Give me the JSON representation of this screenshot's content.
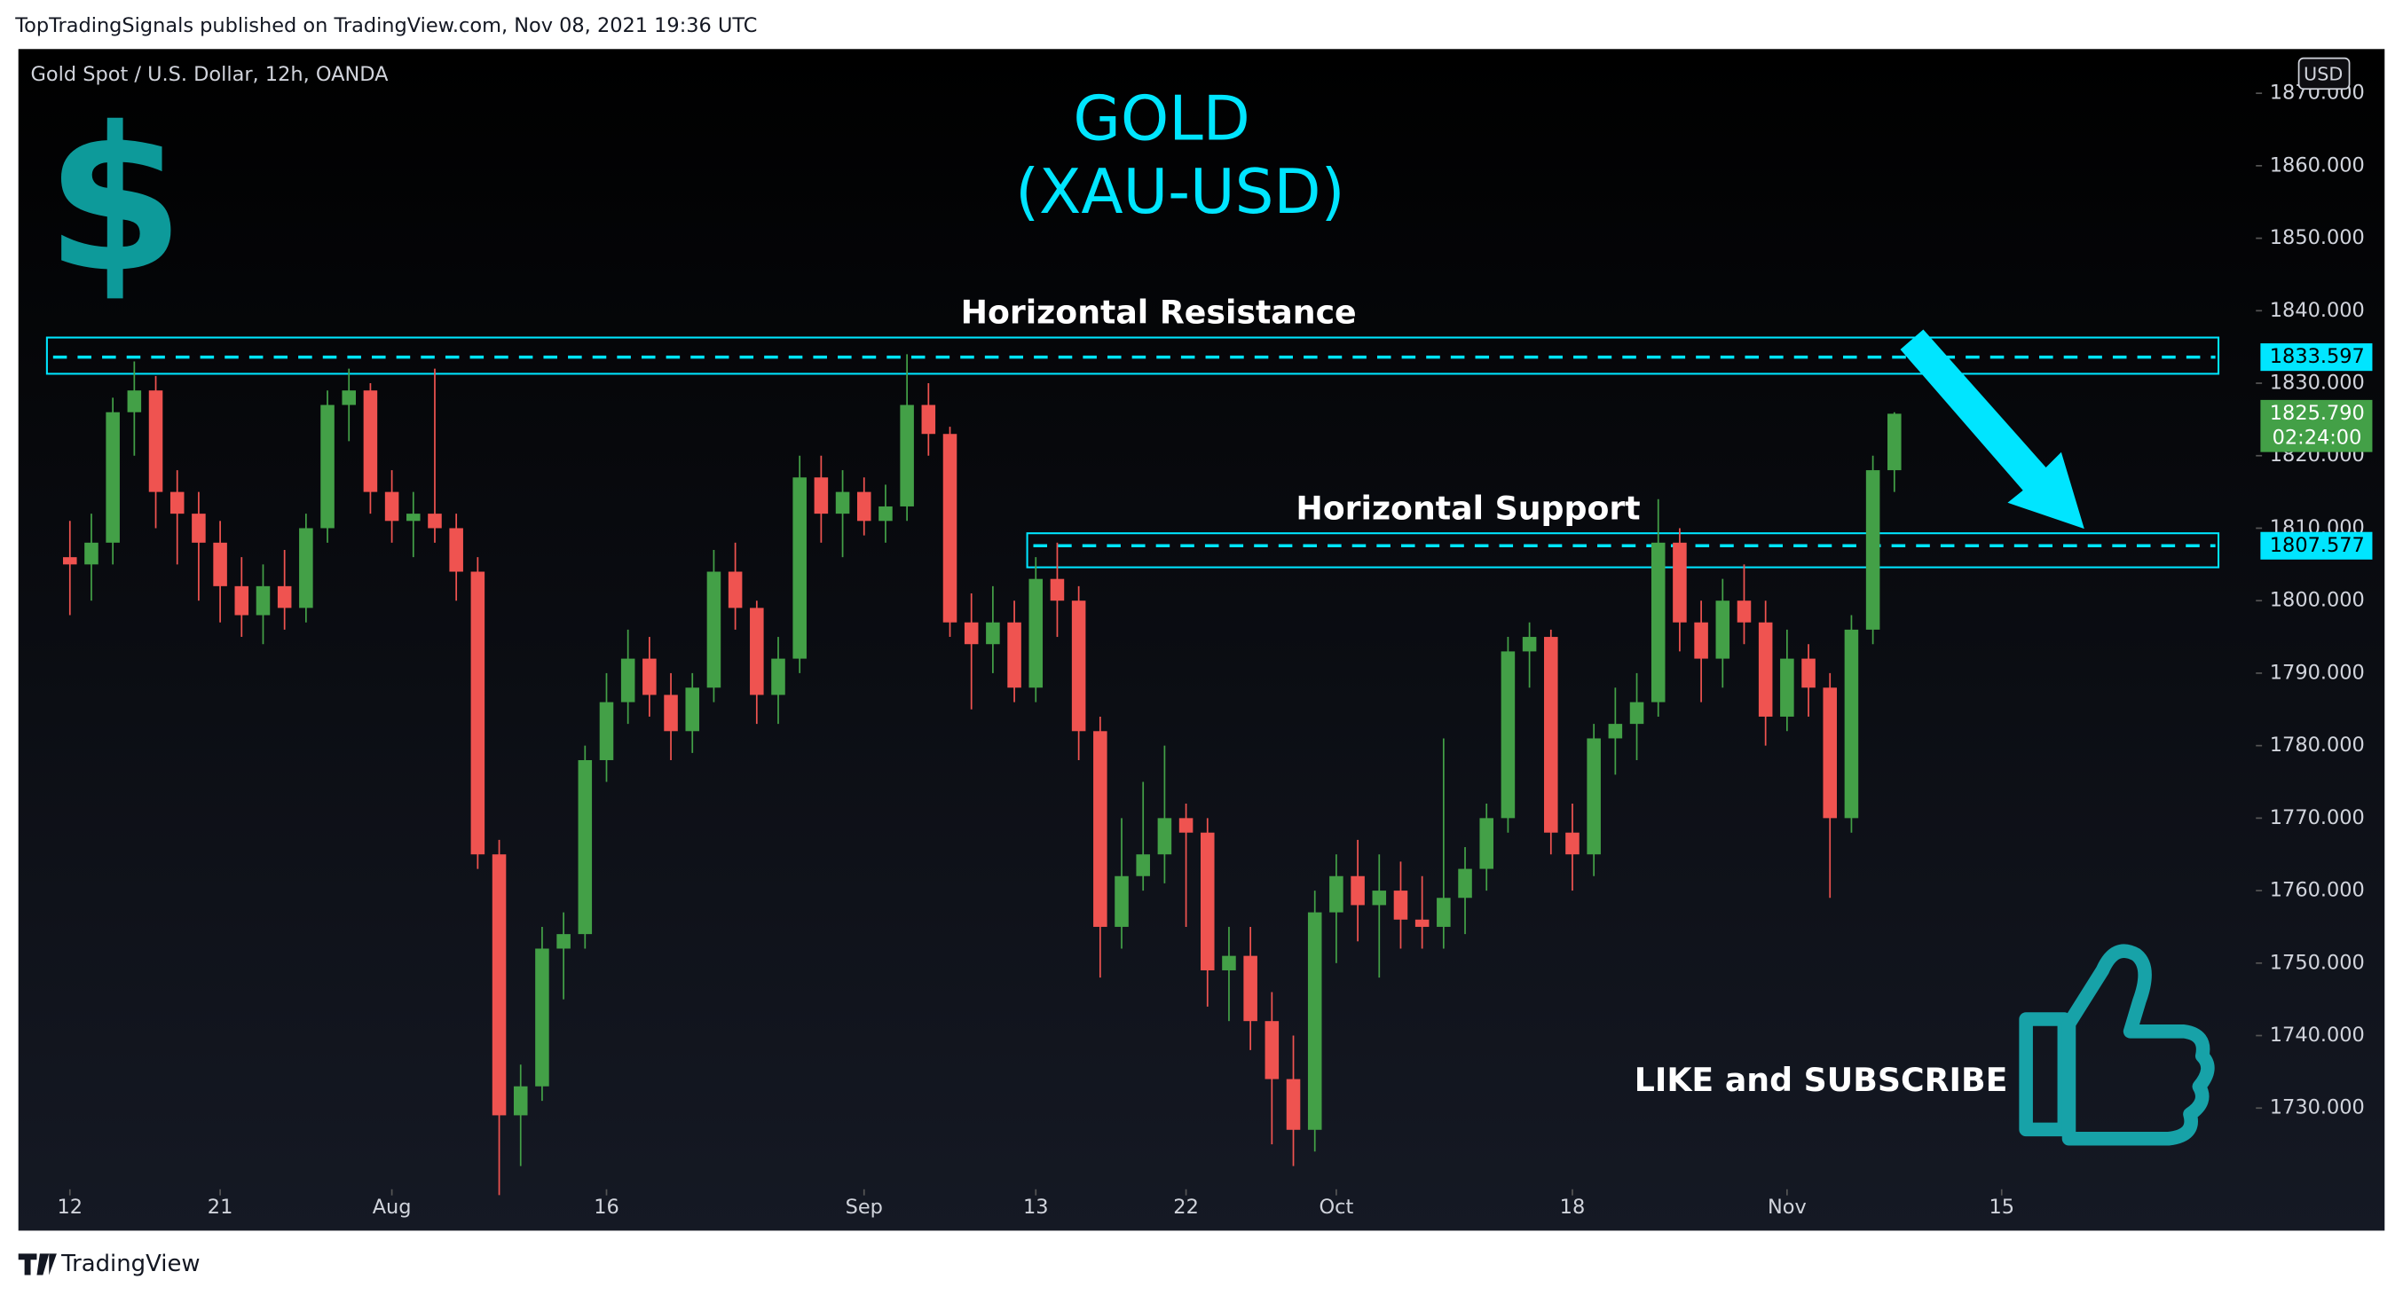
{
  "header": "TopTradingSignals published on TradingView.com, Nov 08, 2021 19:36 UTC",
  "footer": "TradingView",
  "chart_data": {
    "type": "candlestick",
    "symbol": "Gold Spot / U.S. Dollar, 12h, OANDA",
    "title": "GOLD",
    "subtitle": "(XAU-USD)",
    "icon": "$",
    "call_to_action": "LIKE and SUBSCRIBE",
    "currency": "USD",
    "up_color": "#43a047",
    "down_color": "#ef5350",
    "accent_color": "#00e5ff",
    "xlim": [
      -2.4,
      101.7
    ],
    "ylim": [
      1718.8,
      1876.1
    ],
    "xticks": [
      {
        "value": 0,
        "label": "12"
      },
      {
        "value": 7,
        "label": "21"
      },
      {
        "value": 15,
        "label": "Aug"
      },
      {
        "value": 25,
        "label": "16"
      },
      {
        "value": 37,
        "label": "Sep"
      },
      {
        "value": 45,
        "label": "13"
      },
      {
        "value": 52,
        "label": "22"
      },
      {
        "value": 59,
        "label": "Oct"
      },
      {
        "value": 70,
        "label": "18"
      },
      {
        "value": 80,
        "label": "Nov"
      },
      {
        "value": 90,
        "label": "15"
      }
    ],
    "yticks": [
      {
        "value": 1730,
        "label": "1730.000"
      },
      {
        "value": 1740,
        "label": "1740.000"
      },
      {
        "value": 1750,
        "label": "1750.000"
      },
      {
        "value": 1760,
        "label": "1760.000"
      },
      {
        "value": 1770,
        "label": "1770.000"
      },
      {
        "value": 1780,
        "label": "1780.000"
      },
      {
        "value": 1790,
        "label": "1790.000"
      },
      {
        "value": 1800,
        "label": "1800.000"
      },
      {
        "value": 1810,
        "label": "1810.000"
      },
      {
        "value": 1820,
        "label": "1820.000"
      },
      {
        "value": 1830,
        "label": "1830.000"
      },
      {
        "value": 1840,
        "label": "1840.000"
      },
      {
        "value": 1850,
        "label": "1850.000"
      },
      {
        "value": 1860,
        "label": "1860.000"
      },
      {
        "value": 1870,
        "label": "1870.000"
      }
    ],
    "zones": [
      {
        "label": "Horizontal Resistance",
        "level": 1833.597,
        "level_label": "1833.597",
        "xrange": [
          -1.07,
          100.1
        ],
        "yrange": [
          1831.3,
          1836.3
        ]
      },
      {
        "label": "Horizontal Support",
        "level": 1807.577,
        "level_label": "1807.577",
        "xrange": [
          44.6,
          100.1
        ],
        "yrange": [
          1804.6,
          1809.3
        ]
      }
    ],
    "last_price_label": "1825.790",
    "countdown": "02:24:00",
    "candles": [
      [
        1806,
        1811,
        1798,
        1805
      ],
      [
        1805,
        1812,
        1800,
        1808
      ],
      [
        1808,
        1828,
        1805,
        1826
      ],
      [
        1826,
        1833,
        1820,
        1829
      ],
      [
        1829,
        1831,
        1810,
        1815
      ],
      [
        1815,
        1818,
        1805,
        1812
      ],
      [
        1812,
        1815,
        1800,
        1808
      ],
      [
        1808,
        1811,
        1797,
        1802
      ],
      [
        1802,
        1806,
        1795,
        1798
      ],
      [
        1798,
        1805,
        1794,
        1802
      ],
      [
        1802,
        1807,
        1796,
        1799
      ],
      [
        1799,
        1812,
        1797,
        1810
      ],
      [
        1810,
        1829,
        1808,
        1827
      ],
      [
        1827,
        1832,
        1822,
        1829
      ],
      [
        1829,
        1830,
        1812,
        1815
      ],
      [
        1815,
        1818,
        1808,
        1811
      ],
      [
        1811,
        1815,
        1806,
        1812
      ],
      [
        1812,
        1832,
        1808,
        1810
      ],
      [
        1810,
        1812,
        1800,
        1804
      ],
      [
        1804,
        1806,
        1763,
        1765
      ],
      [
        1765,
        1767,
        1718,
        1729
      ],
      [
        1729,
        1736,
        1722,
        1733
      ],
      [
        1733,
        1755,
        1731,
        1752
      ],
      [
        1752,
        1757,
        1745,
        1754
      ],
      [
        1754,
        1780,
        1752,
        1778
      ],
      [
        1778,
        1790,
        1775,
        1786
      ],
      [
        1786,
        1796,
        1783,
        1792
      ],
      [
        1792,
        1795,
        1784,
        1787
      ],
      [
        1787,
        1790,
        1778,
        1782
      ],
      [
        1782,
        1790,
        1779,
        1788
      ],
      [
        1788,
        1807,
        1786,
        1804
      ],
      [
        1804,
        1808,
        1796,
        1799
      ],
      [
        1799,
        1800,
        1783,
        1787
      ],
      [
        1787,
        1795,
        1783,
        1792
      ],
      [
        1792,
        1820,
        1790,
        1817
      ],
      [
        1817,
        1820,
        1808,
        1812
      ],
      [
        1812,
        1818,
        1806,
        1815
      ],
      [
        1815,
        1817,
        1809,
        1811
      ],
      [
        1811,
        1816,
        1808,
        1813
      ],
      [
        1813,
        1834,
        1811,
        1827
      ],
      [
        1827,
        1830,
        1820,
        1823
      ],
      [
        1823,
        1824,
        1795,
        1797
      ],
      [
        1797,
        1801,
        1785,
        1794
      ],
      [
        1794,
        1802,
        1790,
        1797
      ],
      [
        1797,
        1800,
        1786,
        1788
      ],
      [
        1788,
        1806,
        1786,
        1803
      ],
      [
        1803,
        1808,
        1795,
        1800
      ],
      [
        1800,
        1802,
        1778,
        1782
      ],
      [
        1782,
        1784,
        1748,
        1755
      ],
      [
        1755,
        1770,
        1752,
        1762
      ],
      [
        1762,
        1775,
        1760,
        1765
      ],
      [
        1765,
        1780,
        1761,
        1770
      ],
      [
        1770,
        1772,
        1755,
        1768
      ],
      [
        1768,
        1770,
        1744,
        1749
      ],
      [
        1749,
        1755,
        1742,
        1751
      ],
      [
        1751,
        1755,
        1738,
        1742
      ],
      [
        1742,
        1746,
        1725,
        1734
      ],
      [
        1734,
        1740,
        1722,
        1727
      ],
      [
        1727,
        1760,
        1724,
        1757
      ],
      [
        1757,
        1765,
        1750,
        1762
      ],
      [
        1762,
        1767,
        1753,
        1758
      ],
      [
        1758,
        1765,
        1748,
        1760
      ],
      [
        1760,
        1764,
        1752,
        1756
      ],
      [
        1756,
        1762,
        1752,
        1755
      ],
      [
        1755,
        1781,
        1752,
        1759
      ],
      [
        1759,
        1766,
        1754,
        1763
      ],
      [
        1763,
        1772,
        1760,
        1770
      ],
      [
        1770,
        1795,
        1768,
        1793
      ],
      [
        1793,
        1797,
        1788,
        1795
      ],
      [
        1795,
        1796,
        1765,
        1768
      ],
      [
        1768,
        1772,
        1760,
        1765
      ],
      [
        1765,
        1783,
        1762,
        1781
      ],
      [
        1781,
        1788,
        1776,
        1783
      ],
      [
        1783,
        1790,
        1778,
        1786
      ],
      [
        1786,
        1814,
        1784,
        1808
      ],
      [
        1808,
        1810,
        1793,
        1797
      ],
      [
        1797,
        1800,
        1786,
        1792
      ],
      [
        1792,
        1803,
        1788,
        1800
      ],
      [
        1800,
        1805,
        1794,
        1797
      ],
      [
        1797,
        1800,
        1780,
        1784
      ],
      [
        1784,
        1796,
        1782,
        1792
      ],
      [
        1792,
        1794,
        1784,
        1788
      ],
      [
        1788,
        1790,
        1759,
        1770
      ],
      [
        1770,
        1798,
        1768,
        1796
      ],
      [
        1796,
        1820,
        1794,
        1818
      ],
      [
        1818,
        1826,
        1815,
        1825.79
      ]
    ]
  }
}
